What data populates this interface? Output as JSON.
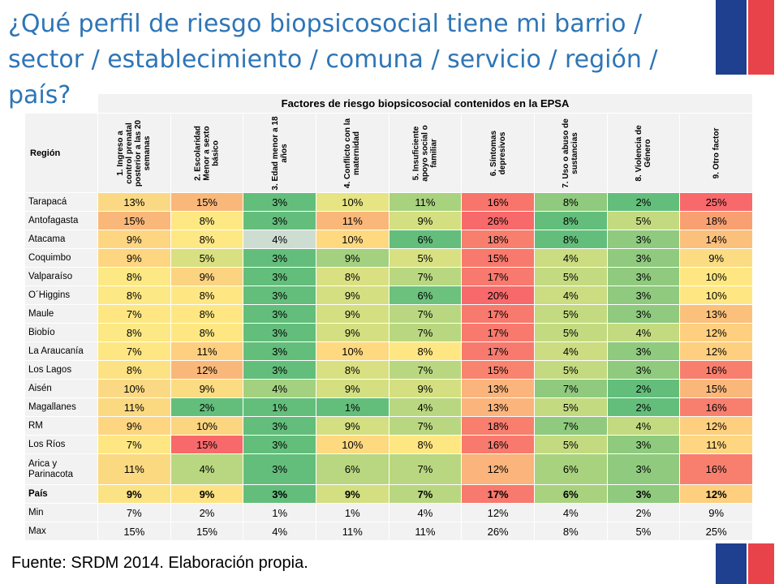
{
  "title": "¿Qué perfil de riesgo biopsicosocial tiene mi barrio / sector / establecimiento / comuna / servicio / región / país?",
  "source": "Fuente: SRDM 2014. Elaboración propia.",
  "table": {
    "group_header": "Factores de riesgo biopsicosocial contenidos en la EPSA",
    "region_header": "Región",
    "columns": [
      "1. Ingreso a control prenatal posterior a las 20 semanas",
      "2. Escolaridad Menor a sexto básico",
      "3. Edad menor a 18 años",
      "4. Conflicto con la maternidad",
      "5. Insuficiente apoyo social o familiar",
      "6. Síntomas depresivos",
      "7. Uso o abuso de sustancias",
      "8. Violencia de Género",
      "9. Otro factor"
    ],
    "rows": [
      {
        "region": "Tarapacá",
        "values": [
          "13%",
          "15%",
          "3%",
          "10%",
          "11%",
          "16%",
          "8%",
          "2%",
          "25%"
        ]
      },
      {
        "region": "Antofagasta",
        "values": [
          "15%",
          "8%",
          "3%",
          "11%",
          "9%",
          "26%",
          "8%",
          "5%",
          "18%"
        ]
      },
      {
        "region": "Atacama",
        "values": [
          "9%",
          "8%",
          "4%",
          "10%",
          "6%",
          "18%",
          "8%",
          "3%",
          "14%"
        ]
      },
      {
        "region": "Coquimbo",
        "values": [
          "9%",
          "5%",
          "3%",
          "9%",
          "5%",
          "15%",
          "4%",
          "3%",
          "9%"
        ]
      },
      {
        "region": "Valparaíso",
        "values": [
          "8%",
          "9%",
          "3%",
          "8%",
          "7%",
          "17%",
          "5%",
          "3%",
          "10%"
        ]
      },
      {
        "region": "O´Higgins",
        "values": [
          "8%",
          "8%",
          "3%",
          "9%",
          "6%",
          "20%",
          "4%",
          "3%",
          "10%"
        ]
      },
      {
        "region": "Maule",
        "values": [
          "7%",
          "8%",
          "3%",
          "9%",
          "7%",
          "17%",
          "5%",
          "3%",
          "13%"
        ]
      },
      {
        "region": "Biobío",
        "values": [
          "8%",
          "8%",
          "3%",
          "9%",
          "7%",
          "17%",
          "5%",
          "4%",
          "12%"
        ]
      },
      {
        "region": "La Araucanía",
        "values": [
          "7%",
          "11%",
          "3%",
          "10%",
          "8%",
          "17%",
          "4%",
          "3%",
          "12%"
        ]
      },
      {
        "region": "Los Lagos",
        "values": [
          "8%",
          "12%",
          "3%",
          "8%",
          "7%",
          "15%",
          "5%",
          "3%",
          "16%"
        ]
      },
      {
        "region": "Aisén",
        "values": [
          "10%",
          "9%",
          "4%",
          "9%",
          "9%",
          "13%",
          "7%",
          "2%",
          "15%"
        ]
      },
      {
        "region": "Magallanes",
        "values": [
          "11%",
          "2%",
          "1%",
          "1%",
          "4%",
          "13%",
          "5%",
          "2%",
          "16%"
        ]
      },
      {
        "region": "RM",
        "values": [
          "9%",
          "10%",
          "3%",
          "9%",
          "7%",
          "18%",
          "7%",
          "4%",
          "12%"
        ]
      },
      {
        "region": "Los Ríos",
        "values": [
          "7%",
          "15%",
          "3%",
          "10%",
          "8%",
          "16%",
          "5%",
          "3%",
          "11%"
        ]
      },
      {
        "region": "Arica y Parinacota",
        "values": [
          "11%",
          "4%",
          "3%",
          "6%",
          "7%",
          "12%",
          "6%",
          "3%",
          "16%"
        ]
      },
      {
        "region": "País",
        "values": [
          "9%",
          "9%",
          "3%",
          "9%",
          "7%",
          "17%",
          "6%",
          "3%",
          "12%"
        ]
      },
      {
        "region": "Min",
        "values": [
          "7%",
          "2%",
          "1%",
          "1%",
          "4%",
          "12%",
          "4%",
          "2%",
          "9%"
        ]
      },
      {
        "region": "Max",
        "values": [
          "15%",
          "15%",
          "4%",
          "11%",
          "11%",
          "26%",
          "8%",
          "5%",
          "25%"
        ]
      }
    ],
    "cell_colors": [
      [
        "#fbd984",
        "#f9b87a",
        "#63be7b",
        "#e6e483",
        "#a9d27f",
        "#f8756b",
        "#8fca7e",
        "#63be7b",
        "#f8696b"
      ],
      [
        "#f9b87a",
        "#fee883",
        "#63be7b",
        "#f9b87a",
        "#d4df81",
        "#f8696b",
        "#63be7b",
        "#c4da80",
        "#f9a073"
      ],
      [
        "#fed580",
        "#fee883",
        "#ceddd1",
        "#fed980",
        "#63be7b",
        "#f87e6e",
        "#63be7b",
        "#8fca7e",
        "#fbc07c"
      ],
      [
        "#fed580",
        "#d8e081",
        "#63be7b",
        "#a3d17f",
        "#d8e081",
        "#f8796d",
        "#cbdc81",
        "#8fca7e",
        "#fbdc82"
      ],
      [
        "#fce884",
        "#fbd381",
        "#63be7b",
        "#d9e081",
        "#b9d780",
        "#f87a6e",
        "#c4da80",
        "#8fca7e",
        "#fee783"
      ],
      [
        "#fce884",
        "#fee783",
        "#63be7b",
        "#d4df81",
        "#6cc17c",
        "#f8696b",
        "#cbdc81",
        "#8fca7e",
        "#fee783"
      ],
      [
        "#fee783",
        "#fee783",
        "#63be7b",
        "#d4df81",
        "#b9d780",
        "#f8796d",
        "#c4da80",
        "#8fca7e",
        "#fbc07c"
      ],
      [
        "#fce884",
        "#fee783",
        "#63be7b",
        "#d4df81",
        "#b9d780",
        "#f8796d",
        "#c4da80",
        "#c4da80",
        "#fdcf7f"
      ],
      [
        "#fee783",
        "#fdcf7f",
        "#63be7b",
        "#fed980",
        "#fee783",
        "#f87a6e",
        "#cbdc81",
        "#8fca7e",
        "#fdcf7f"
      ],
      [
        "#fde283",
        "#f9b87a",
        "#63be7b",
        "#d9e081",
        "#b9d780",
        "#f88470",
        "#c4da80",
        "#8fca7e",
        "#f87f6e"
      ],
      [
        "#fbd984",
        "#fbdc82",
        "#a3d17f",
        "#d4df81",
        "#d4df81",
        "#fbb47b",
        "#8fca7e",
        "#63be7b",
        "#f9b87a"
      ],
      [
        "#fbd981",
        "#63be7b",
        "#63be7b",
        "#63be7b",
        "#b9d780",
        "#fbb47b",
        "#c4da80",
        "#63be7b",
        "#f87f6e"
      ],
      [
        "#fed580",
        "#fcd581",
        "#63be7b",
        "#d4df81",
        "#b9d780",
        "#f87e6e",
        "#8fca7e",
        "#c4da80",
        "#fdcf7f"
      ],
      [
        "#fee783",
        "#f8696b",
        "#63be7b",
        "#fed980",
        "#fee783",
        "#f8796d",
        "#c4da80",
        "#8fca7e",
        "#fed681"
      ],
      [
        "#fbd981",
        "#b9d780",
        "#63be7b",
        "#b9d780",
        "#b9d780",
        "#fbb47b",
        "#a9d27f",
        "#8fca7e",
        "#f87f6e"
      ],
      [
        "#fbe284",
        "#fde283",
        "#63be7b",
        "#d4df81",
        "#b9d780",
        "#f8796d",
        "#a9d27f",
        "#8fca7e",
        "#fdcf7f"
      ]
    ]
  }
}
